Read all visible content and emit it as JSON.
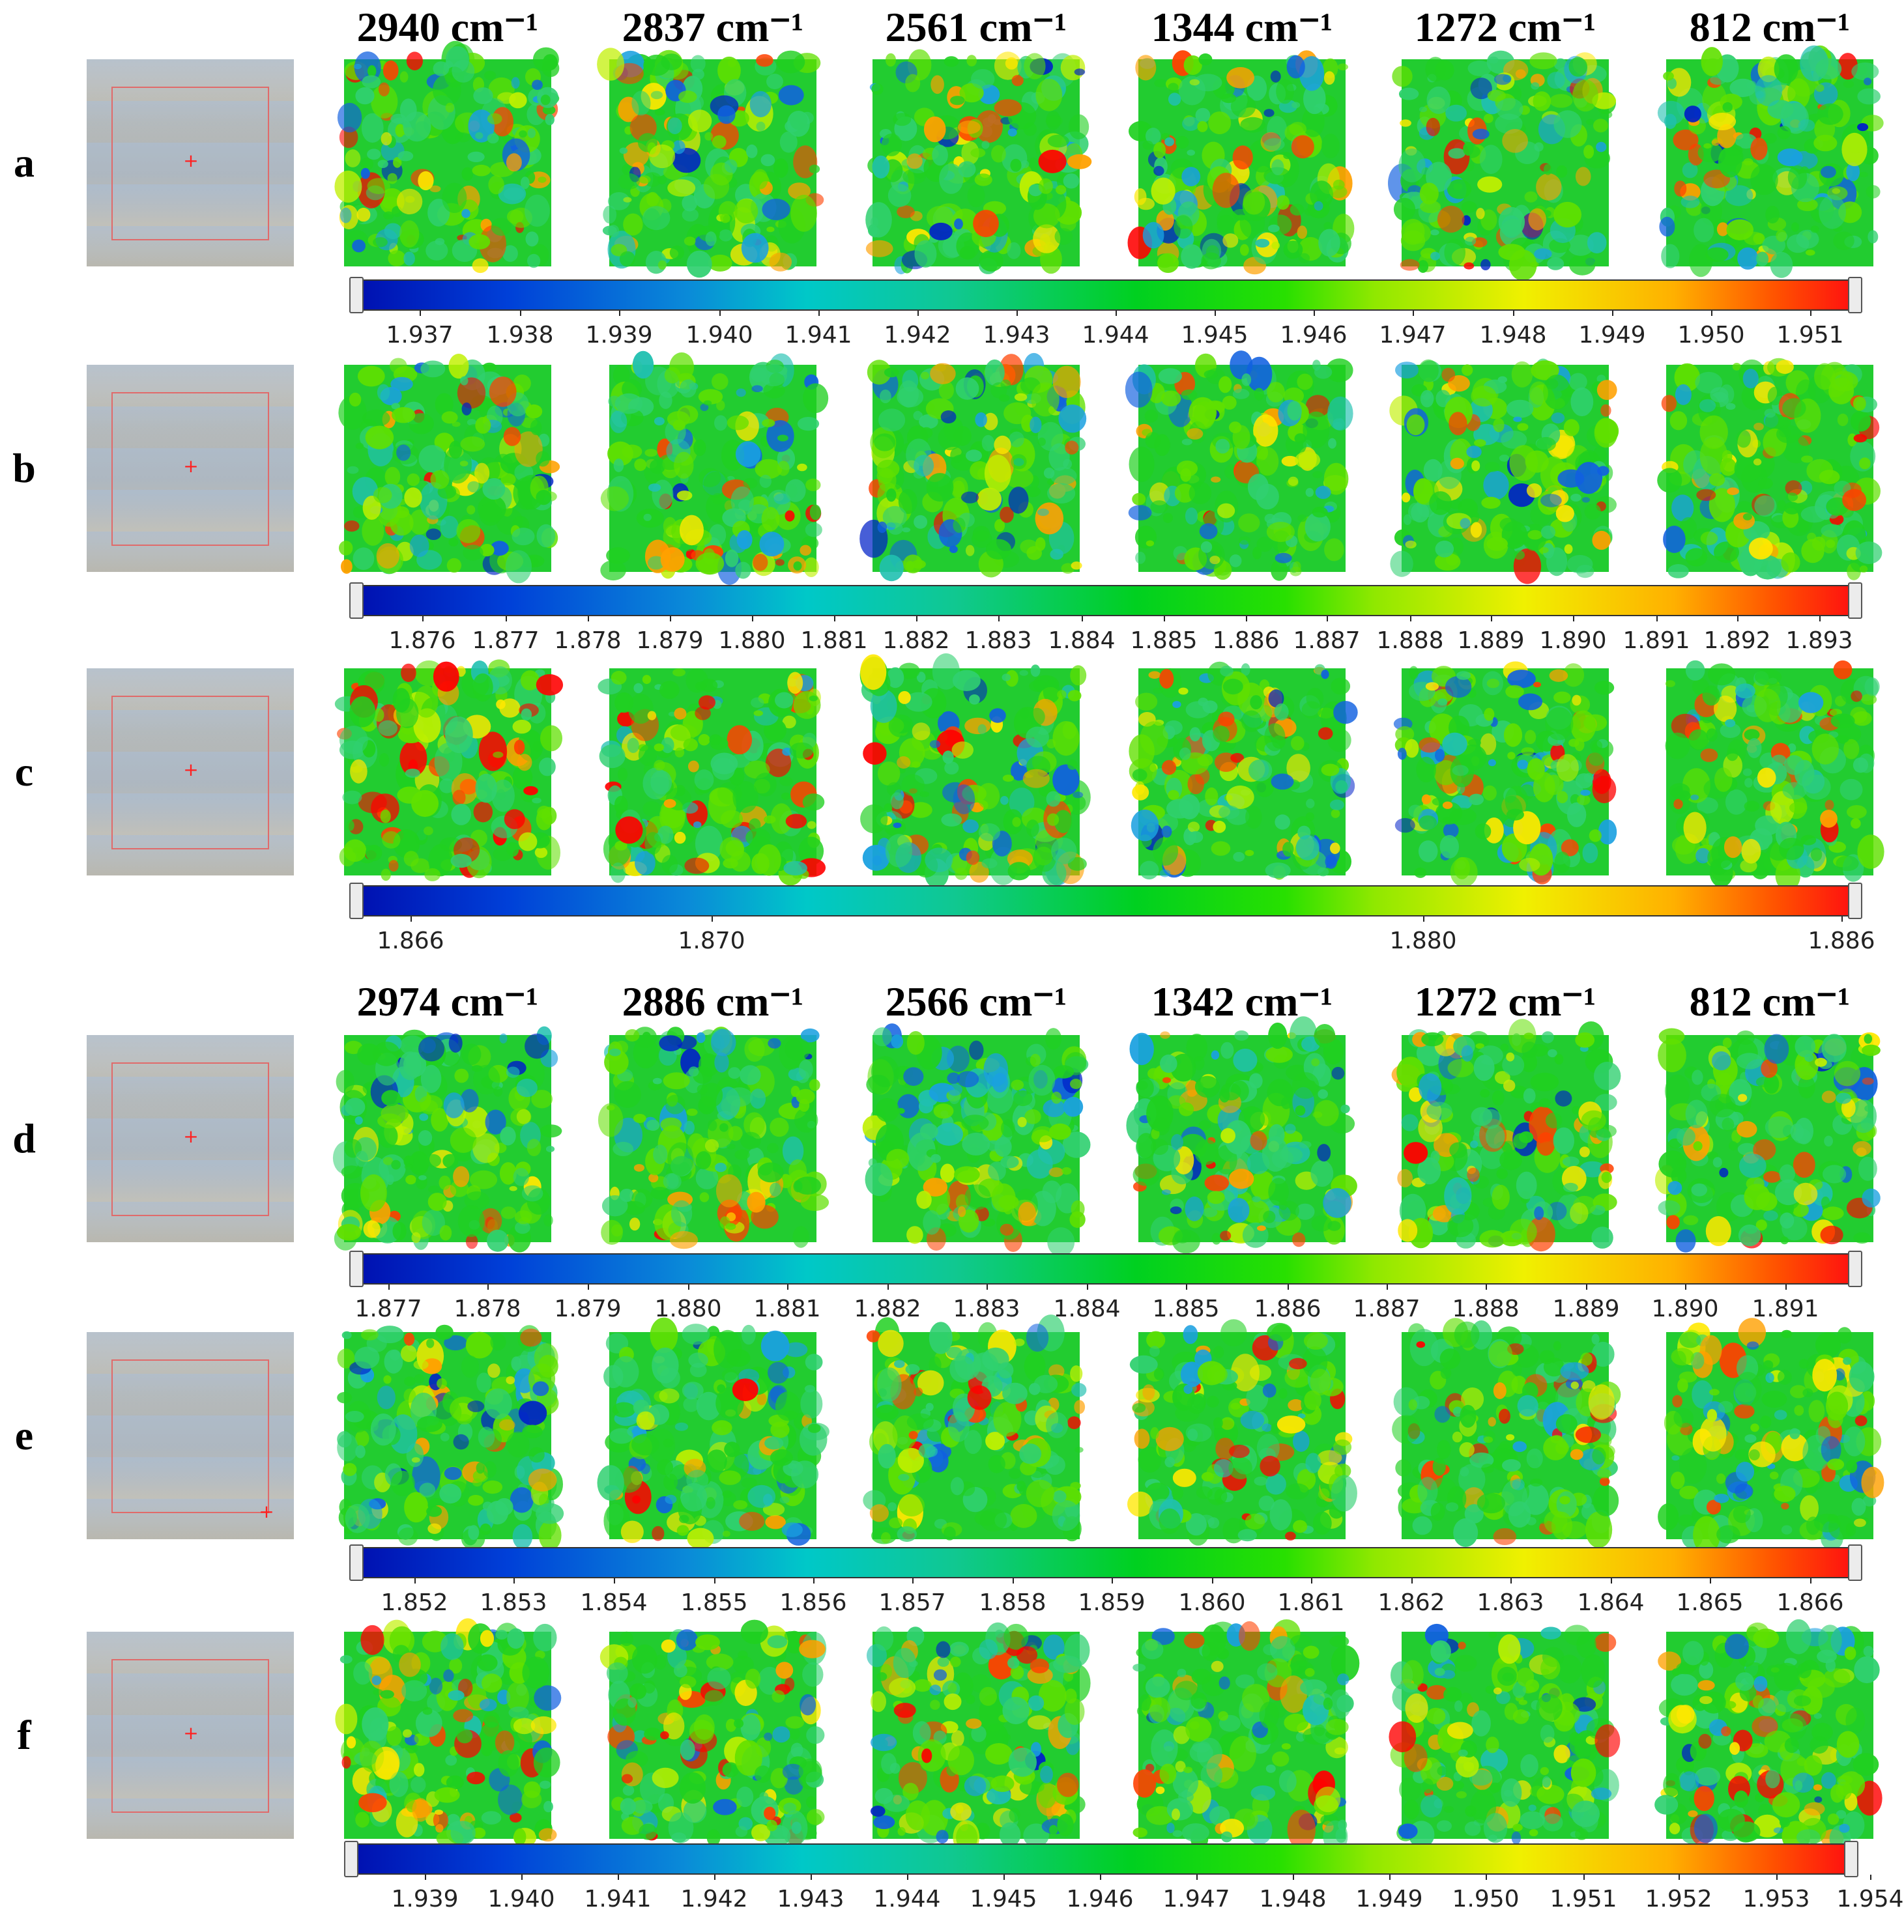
{
  "headers": {
    "group1": [
      "2940 cm⁻¹",
      "2837 cm⁻¹",
      "2561 cm⁻¹",
      "1344 cm⁻¹",
      "1272 cm⁻¹",
      "812 cm⁻¹"
    ],
    "group2": [
      "2974 cm⁻¹",
      "2886 cm⁻¹",
      "2566 cm⁻¹",
      "1342 cm⁻¹",
      "1272 cm⁻¹",
      "812 cm⁻¹"
    ]
  },
  "rows": [
    {
      "label": "a",
      "colorbar_ticks": [
        "1.937",
        "1.938",
        "1.939",
        "1.940",
        "1.941",
        "1.942",
        "1.943",
        "1.944",
        "1.945",
        "1.946",
        "1.947",
        "1.948",
        "1.949",
        "1.950",
        "1.951"
      ]
    },
    {
      "label": "b",
      "colorbar_ticks": [
        "1.876",
        "1.877",
        "1.878",
        "1.879",
        "1.880",
        "1.881",
        "1.882",
        "1.883",
        "1.884",
        "1.885",
        "1.886",
        "1.887",
        "1.888",
        "1.889",
        "1.890",
        "1.891",
        "1.892",
        "1.893"
      ]
    },
    {
      "label": "c",
      "colorbar_ticks": [
        "1.866",
        "1.870",
        "1.880",
        "1.886"
      ]
    },
    {
      "label": "d",
      "colorbar_ticks": [
        "1.877",
        "1.878",
        "1.879",
        "1.880",
        "1.881",
        "1.882",
        "1.883",
        "1.884",
        "1.885",
        "1.886",
        "1.887",
        "1.888",
        "1.889",
        "1.890",
        "1.891"
      ]
    },
    {
      "label": "e",
      "colorbar_ticks": [
        "1.852",
        "1.853",
        "1.854",
        "1.855",
        "1.856",
        "1.857",
        "1.858",
        "1.859",
        "1.860",
        "1.861",
        "1.862",
        "1.863",
        "1.864",
        "1.865",
        "1.866"
      ]
    },
    {
      "label": "f",
      "colorbar_ticks": [
        "1.939",
        "1.940",
        "1.941",
        "1.942",
        "1.943",
        "1.944",
        "1.945",
        "1.946",
        "1.947",
        "1.948",
        "1.949",
        "1.950",
        "1.951",
        "1.952",
        "1.953",
        "1.954"
      ]
    }
  ],
  "colors": {
    "low": "#0010b0",
    "mid": "#00d020",
    "high": "#ff1010"
  }
}
